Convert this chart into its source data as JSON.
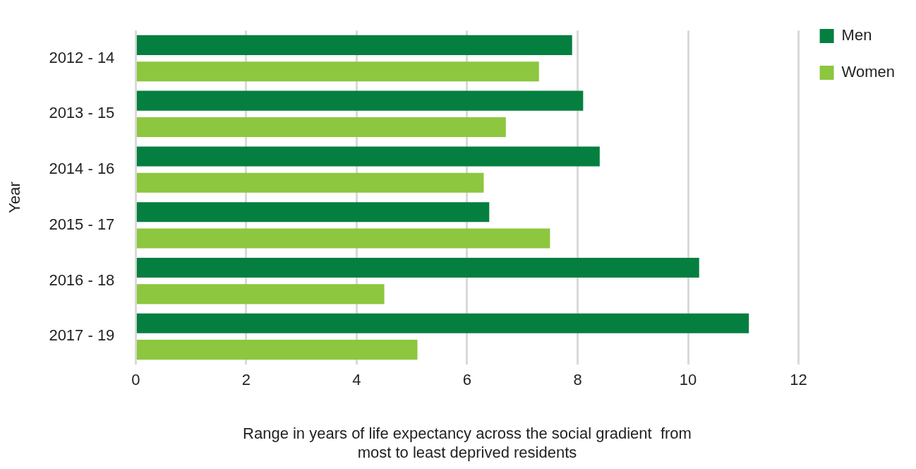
{
  "chart_data": {
    "type": "bar",
    "orientation": "horizontal",
    "xlabel": "Range in years of life expectancy across the social gradient  from\nmost to least deprived residents",
    "ylabel": "Year",
    "categories": [
      "2012 - 14",
      "2013 - 15",
      "2014 - 16",
      "2015 - 17",
      "2016 - 18",
      "2017 - 19"
    ],
    "series": [
      {
        "name": "Men",
        "color": "#057f3f",
        "values": [
          7.9,
          8.1,
          8.4,
          6.4,
          10.2,
          11.1
        ]
      },
      {
        "name": "Women",
        "color": "#8dc63f",
        "values": [
          7.3,
          6.7,
          6.3,
          7.5,
          4.5,
          5.1
        ]
      }
    ],
    "xlim": [
      0,
      12
    ],
    "xticks": [
      0,
      2,
      4,
      6,
      8,
      10,
      12
    ],
    "grid": "x",
    "legend": "top right"
  }
}
